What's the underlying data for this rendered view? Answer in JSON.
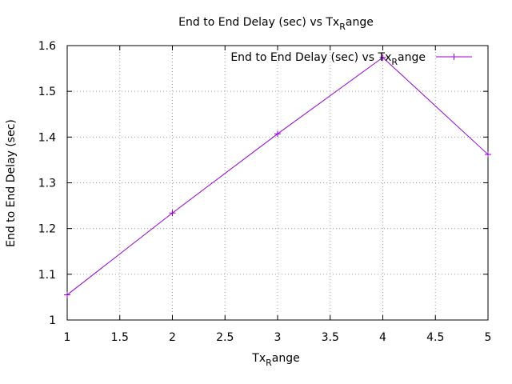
{
  "chart_data": {
    "type": "line",
    "title": {
      "main": "End to End Delay (sec) vs Tx",
      "sub": "R",
      "rest": "ange"
    },
    "xlabel": {
      "main": "Tx",
      "sub": "R",
      "rest": "ange"
    },
    "ylabel": "End to End Delay (sec)",
    "xlim": [
      1,
      5
    ],
    "ylim": [
      1,
      1.6
    ],
    "xticks": [
      1,
      1.5,
      2,
      2.5,
      3,
      3.5,
      4,
      4.5,
      5
    ],
    "yticks": [
      1,
      1.1,
      1.2,
      1.3,
      1.4,
      1.5,
      1.6
    ],
    "xtick_labels": [
      "1",
      "1.5",
      "2",
      "2.5",
      "3",
      "3.5",
      "4",
      "4.5",
      "5"
    ],
    "ytick_labels": [
      "1",
      "1.1",
      "1.2",
      "1.3",
      "1.4",
      "1.5",
      "1.6"
    ],
    "grid": true,
    "legend_position": "top-right",
    "series": [
      {
        "name": {
          "main": "End to End Delay (sec) vs Tx",
          "sub": "R",
          "rest": "ange"
        },
        "color": "#9400d3",
        "marker": "plus",
        "x": [
          1,
          2,
          3,
          4,
          5
        ],
        "y": [
          1.055,
          1.234,
          1.407,
          1.574,
          1.362
        ]
      }
    ]
  }
}
